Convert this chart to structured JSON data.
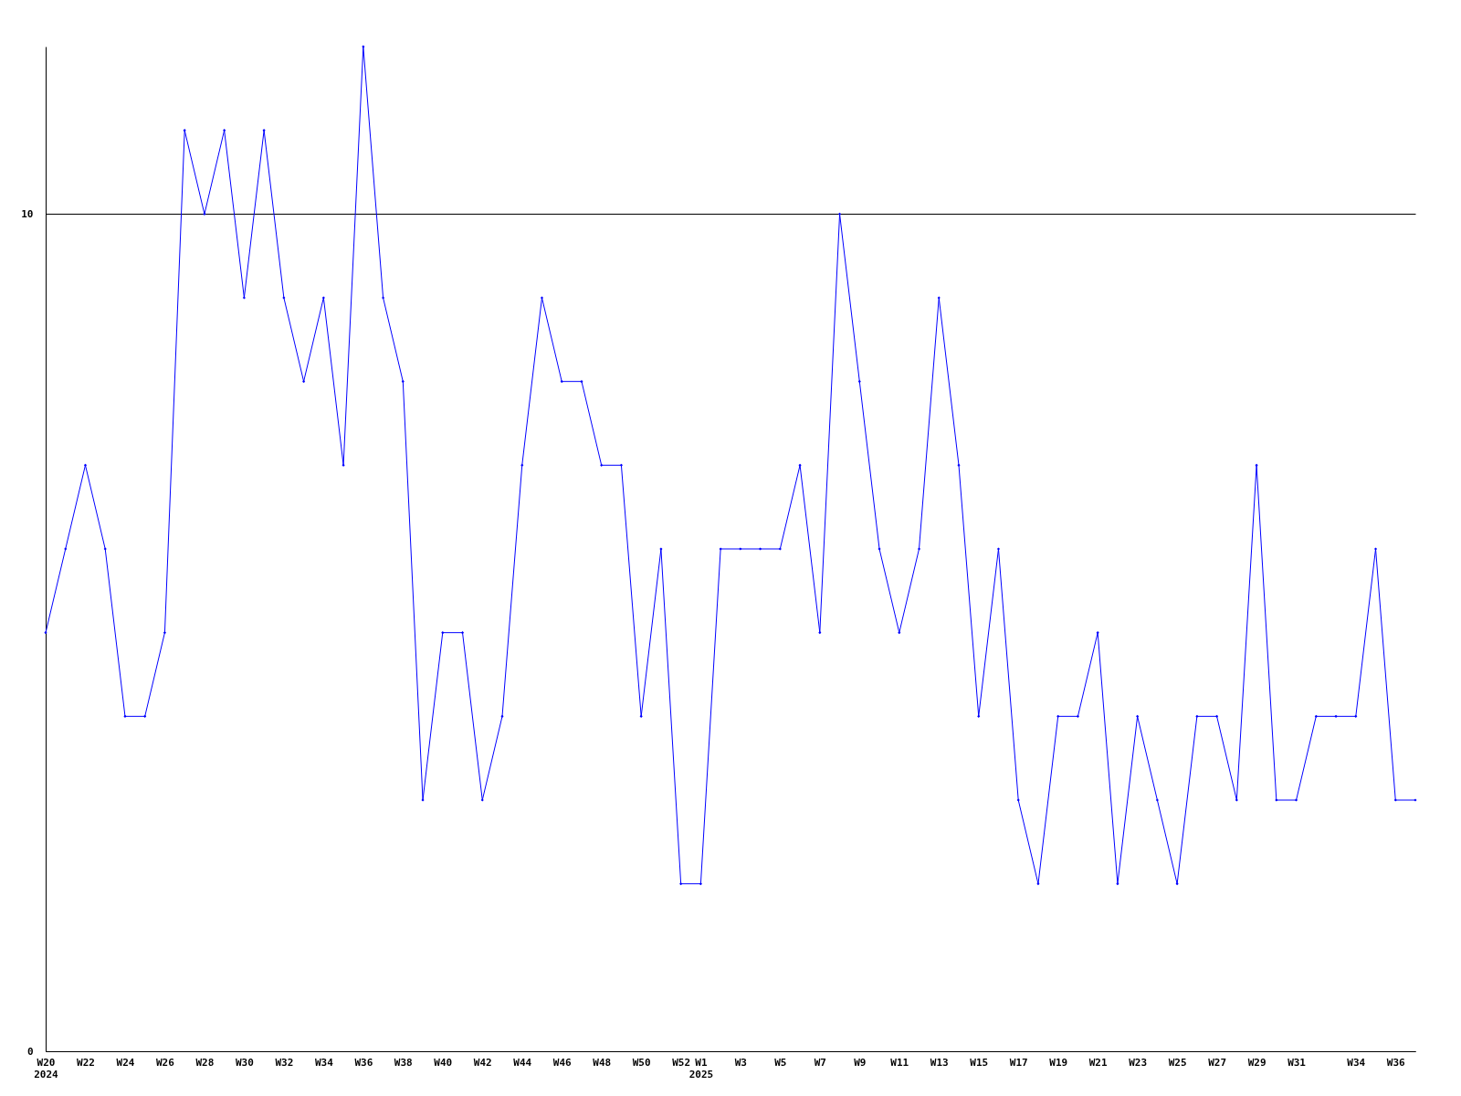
{
  "chart_data": {
    "type": "line",
    "categories": [
      "W20\n2024",
      null,
      "W22",
      null,
      "W24",
      null,
      "W26",
      null,
      "W28",
      null,
      "W30",
      null,
      "W32",
      null,
      "W34",
      null,
      "W36",
      null,
      "W38",
      null,
      "W40",
      null,
      "W42",
      null,
      "W44",
      null,
      "W46",
      null,
      "W48",
      null,
      "W50",
      null,
      "W52",
      "W1\n2025",
      null,
      "W3",
      null,
      "W5",
      null,
      "W7",
      null,
      "W9",
      null,
      "W11",
      null,
      "W13",
      null,
      "W15",
      null,
      "W17",
      null,
      "W19",
      null,
      "W21",
      null,
      "W23",
      null,
      "W25",
      null,
      "W27",
      null,
      "W29",
      null,
      "W31",
      null,
      null,
      "W34",
      null,
      "W36",
      null
    ],
    "series": [
      {
        "color": "#0000ff",
        "values": [
          5,
          6,
          7,
          6,
          4,
          4,
          5,
          11,
          10,
          11,
          9,
          11,
          9,
          8,
          9,
          7,
          12,
          9,
          8,
          3,
          5,
          5,
          3,
          4,
          7,
          9,
          8,
          8,
          7,
          7,
          4,
          6,
          2,
          2,
          6,
          6,
          6,
          6,
          7,
          5,
          10,
          8,
          6,
          5,
          6,
          9,
          7,
          4,
          6,
          3,
          2,
          4,
          4,
          5,
          2,
          4,
          3,
          2,
          4,
          4,
          3,
          7,
          3,
          3,
          4,
          4,
          4,
          6,
          3,
          3
        ]
      }
    ],
    "ylim": [
      0,
      12
    ],
    "yticks": [
      0,
      10
    ],
    "grid": "y",
    "marker": "diamond",
    "line_style": "solid"
  }
}
